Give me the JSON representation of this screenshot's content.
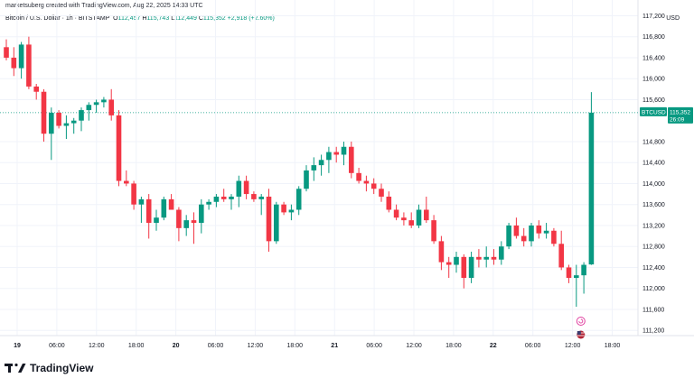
{
  "attribution": "marketsuberg created with TradingView.com, Aug 22, 2025 14:33 UTC",
  "legend": {
    "symbol": "Bitcoin / U.S. Dollar · 1h · BITSTAMP",
    "o_label": "O",
    "o_value": "112,457",
    "h_label": "H",
    "h_value": "115,743",
    "l_label": "L",
    "l_value": "112,449",
    "c_label": "C",
    "c_value": "115,352",
    "change": "+2,918 (+2.60%)"
  },
  "currency": "USD",
  "price_badge": {
    "label": "BTCUSD",
    "value": "115,352",
    "countdown": "26:09"
  },
  "brand": {
    "name": "TradingView"
  },
  "icons": [
    "tradingview-logo-icon",
    "event-marker-icon",
    "us-flag-event-icon"
  ],
  "colors": {
    "up": "#089981",
    "down": "#f23645",
    "price_line": "#089981"
  },
  "chart_data": {
    "type": "candlestick",
    "y_axis_ticks": [
      "117,200",
      "116,800",
      "116,400",
      "116,000",
      "115,600",
      "114,800",
      "114,400",
      "114,000",
      "113,600",
      "113,200",
      "112,800",
      "112,400",
      "112,000",
      "111,600",
      "111,200"
    ],
    "x_axis_ticks": [
      "19",
      "06:00",
      "12:00",
      "18:00",
      "20",
      "06:00",
      "12:00",
      "18:00",
      "21",
      "06:00",
      "12:00",
      "18:00",
      "22",
      "06:00",
      "12:00",
      "18:00"
    ],
    "ylim": [
      111100,
      117500
    ],
    "grid": true,
    "last_price": 115352,
    "candles": [
      [
        116600,
        116750,
        116350,
        116400
      ],
      [
        116400,
        116600,
        116050,
        116200
      ],
      [
        116200,
        116700,
        116000,
        116650
      ],
      [
        116650,
        116800,
        115800,
        115850
      ],
      [
        115850,
        115900,
        115600,
        115750
      ],
      [
        115750,
        115800,
        114800,
        114950
      ],
      [
        114950,
        115450,
        114450,
        115350
      ],
      [
        115350,
        115400,
        115050,
        115100
      ],
      [
        115100,
        115300,
        114850,
        115150
      ],
      [
        115150,
        115250,
        114950,
        115200
      ],
      [
        115200,
        115450,
        115000,
        115400
      ],
      [
        115400,
        115550,
        115200,
        115500
      ],
      [
        115500,
        115600,
        115350,
        115550
      ],
      [
        115550,
        115650,
        115450,
        115600
      ],
      [
        115600,
        115800,
        115200,
        115300
      ],
      [
        115300,
        115400,
        113950,
        114050
      ],
      [
        114050,
        114250,
        113950,
        114000
      ],
      [
        114000,
        114050,
        113500,
        113600
      ],
      [
        113600,
        113750,
        113250,
        113700
      ],
      [
        113700,
        113800,
        112950,
        113250
      ],
      [
        113250,
        113500,
        113100,
        113350
      ],
      [
        113350,
        113750,
        113300,
        113700
      ],
      [
        113700,
        113800,
        113500,
        113500
      ],
      [
        113500,
        113550,
        112900,
        113150
      ],
      [
        113150,
        113400,
        113000,
        113300
      ],
      [
        113300,
        113450,
        112850,
        113250
      ],
      [
        113250,
        113700,
        113050,
        113600
      ],
      [
        113600,
        113700,
        113500,
        113650
      ],
      [
        113650,
        113800,
        113550,
        113750
      ],
      [
        113750,
        113900,
        113650,
        113700
      ],
      [
        113700,
        113800,
        113500,
        113750
      ],
      [
        113750,
        114150,
        113550,
        114050
      ],
      [
        114050,
        114150,
        113700,
        113800
      ],
      [
        113800,
        113850,
        113650,
        113700
      ],
      [
        113700,
        113800,
        113400,
        113750
      ],
      [
        113750,
        113900,
        112700,
        112900
      ],
      [
        112900,
        113650,
        112850,
        113600
      ],
      [
        113600,
        113650,
        113400,
        113450
      ],
      [
        113450,
        113600,
        113300,
        113500
      ],
      [
        113500,
        113950,
        113400,
        113900
      ],
      [
        113900,
        114350,
        113850,
        114250
      ],
      [
        114250,
        114500,
        114050,
        114350
      ],
      [
        114350,
        114550,
        114150,
        114450
      ],
      [
        114450,
        114700,
        114200,
        114600
      ],
      [
        114600,
        114700,
        114400,
        114550
      ],
      [
        114550,
        114800,
        114350,
        114700
      ],
      [
        114700,
        114800,
        114100,
        114200
      ],
      [
        114200,
        114300,
        114000,
        114050
      ],
      [
        114050,
        114150,
        113850,
        114000
      ],
      [
        114000,
        114100,
        113800,
        113900
      ],
      [
        113900,
        114000,
        113650,
        113750
      ],
      [
        113750,
        113850,
        113450,
        113500
      ],
      [
        113500,
        113600,
        113300,
        113350
      ],
      [
        113350,
        113450,
        113200,
        113300
      ],
      [
        113300,
        113450,
        113150,
        113200
      ],
      [
        113200,
        113600,
        113150,
        113500
      ],
      [
        113500,
        113750,
        113250,
        113300
      ],
      [
        113300,
        113400,
        112850,
        112900
      ],
      [
        112900,
        113000,
        112350,
        112500
      ],
      [
        112500,
        112600,
        112200,
        112450
      ],
      [
        112450,
        112700,
        112300,
        112600
      ],
      [
        112600,
        112650,
        112000,
        112200
      ],
      [
        112200,
        112700,
        112100,
        112600
      ],
      [
        112600,
        112750,
        112400,
        112550
      ],
      [
        112550,
        112800,
        112400,
        112600
      ],
      [
        112600,
        112750,
        112450,
        112550
      ],
      [
        112550,
        112900,
        112450,
        112800
      ],
      [
        112800,
        113250,
        112750,
        113200
      ],
      [
        113200,
        113350,
        112950,
        113000
      ],
      [
        113000,
        113150,
        112800,
        112900
      ],
      [
        112900,
        113250,
        112800,
        113200
      ],
      [
        113200,
        113300,
        112950,
        113050
      ],
      [
        113050,
        113250,
        112950,
        113100
      ],
      [
        113100,
        113150,
        112800,
        112850
      ],
      [
        112850,
        113100,
        112350,
        112400
      ],
      [
        112400,
        112450,
        112100,
        112200
      ],
      [
        112200,
        112450,
        111650,
        112250
      ],
      [
        112250,
        112500,
        111900,
        112450
      ],
      [
        112457,
        115743,
        112449,
        115352
      ]
    ]
  }
}
